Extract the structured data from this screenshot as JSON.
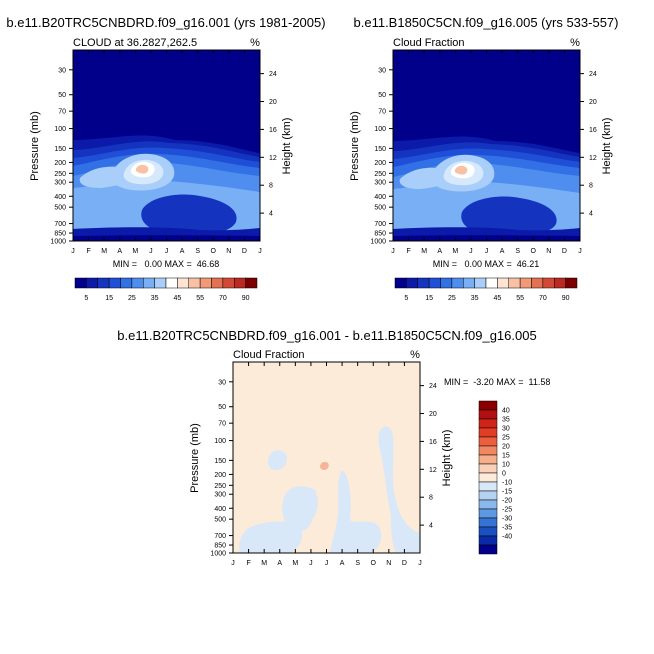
{
  "color_scale_hex": [
    "#00008b",
    "#0b1aa8",
    "#1434c0",
    "#1f4fd6",
    "#3270e6",
    "#4f8eee",
    "#79aff5",
    "#a9cef9",
    "#d6e8fc",
    "#ffffff",
    "#fde3d4",
    "#f9c1a3",
    "#f19a77",
    "#e47153",
    "#d24a36",
    "#bb2a20",
    "#9c1410",
    "#7a0000"
  ],
  "panels": [
    {
      "main_title": "b.e11.B20TRC5CNBDRD.f09_g16.001 (yrs 1981-2005)",
      "left_label": "CLOUD at 36.2827,262.5",
      "units": "%",
      "ylabel": "Pressure (mb)",
      "y2label": "Height (km)",
      "stats": "MIN =   0.00 MAX =  46.68"
    },
    {
      "main_title": "b.e11.B1850C5CN.f09_g16.005 (yrs 533-557)",
      "left_label": "Cloud Fraction",
      "units": "%",
      "ylabel": "Pressure (mb)",
      "y2label": "Height (km)",
      "stats": "MIN =   0.00 MAX =  46.21"
    },
    {
      "main_title": "b.e11.B20TRC5CNBDRD.f09_g16.001 - b.e11.B1850C5CN.f09_g16.005",
      "left_label": "Cloud Fraction",
      "units": "%",
      "ylabel": "Pressure (mb)",
      "y2label": "Height (km)",
      "stats": "MIN =  -3.20 MAX =  11.58"
    }
  ],
  "chart_data": [
    {
      "type": "heatmap",
      "title": "b.e11.B20TRC5CNBDRD.f09_g16.001 (yrs 1981-2005)",
      "subtitle": "CLOUD at 36.2827,262.5",
      "xlabel": "",
      "ylabel": "Pressure (mb)",
      "y2label": "Height (km)",
      "x_ticks": [
        "J",
        "F",
        "M",
        "A",
        "M",
        "J",
        "J",
        "A",
        "S",
        "O",
        "N",
        "D",
        "J"
      ],
      "y_ticks": [
        30,
        50,
        70,
        100,
        150,
        200,
        250,
        300,
        400,
        500,
        700,
        850,
        1000
      ],
      "y_range": [
        1000,
        20
      ],
      "y2_ticks": [
        4,
        8,
        12,
        16,
        20,
        24
      ],
      "color_levels": [
        5,
        10,
        15,
        20,
        25,
        30,
        35,
        40,
        45,
        50,
        55,
        60,
        70,
        80,
        90
      ],
      "colorbar_labels": [
        "5",
        "15",
        "25",
        "35",
        "45",
        "55",
        "70",
        "90"
      ],
      "min": 0.0,
      "max": 46.68,
      "max_location": {
        "month": "May",
        "pressure_mb": 250
      }
    },
    {
      "type": "heatmap",
      "title": "b.e11.B1850C5CN.f09_g16.005 (yrs 533-557)",
      "subtitle": "Cloud Fraction",
      "xlabel": "",
      "ylabel": "Pressure (mb)",
      "y2label": "Height (km)",
      "x_ticks": [
        "J",
        "F",
        "M",
        "A",
        "M",
        "J",
        "J",
        "A",
        "S",
        "O",
        "N",
        "D",
        "J"
      ],
      "y_ticks": [
        30,
        50,
        70,
        100,
        150,
        200,
        250,
        300,
        400,
        500,
        700,
        850,
        1000
      ],
      "y_range": [
        1000,
        20
      ],
      "y2_ticks": [
        4,
        8,
        12,
        16,
        20,
        24
      ],
      "color_levels": [
        5,
        10,
        15,
        20,
        25,
        30,
        35,
        40,
        45,
        50,
        55,
        60,
        70,
        80,
        90
      ],
      "colorbar_labels": [
        "5",
        "15",
        "25",
        "35",
        "45",
        "55",
        "70",
        "90"
      ],
      "min": 0.0,
      "max": 46.21,
      "max_location": {
        "month": "May",
        "pressure_mb": 250
      }
    },
    {
      "type": "heatmap",
      "title": "b.e11.B20TRC5CNBDRD.f09_g16.001 - b.e11.B1850C5CN.f09_g16.005",
      "subtitle": "Cloud Fraction",
      "xlabel": "",
      "ylabel": "Pressure (mb)",
      "y2label": "Height (km)",
      "x_ticks": [
        "J",
        "F",
        "M",
        "A",
        "M",
        "J",
        "J",
        "A",
        "S",
        "O",
        "N",
        "D",
        "J"
      ],
      "y_ticks": [
        30,
        50,
        70,
        100,
        150,
        200,
        250,
        300,
        400,
        500,
        700,
        850,
        1000
      ],
      "y_range": [
        1000,
        20
      ],
      "y2_ticks": [
        4,
        8,
        12,
        16,
        20,
        24
      ],
      "color_levels": [
        -40,
        -35,
        -30,
        -25,
        -20,
        -15,
        -10,
        0,
        10,
        15,
        20,
        25,
        30,
        35,
        40
      ],
      "colorbar_labels": [
        "40",
        "35",
        "30",
        "25",
        "20",
        "15",
        "10",
        "0",
        "-10",
        "-15",
        "-20",
        "-25",
        "-30",
        "-35",
        "-40"
      ],
      "min": -3.2,
      "max": 11.58
    }
  ]
}
